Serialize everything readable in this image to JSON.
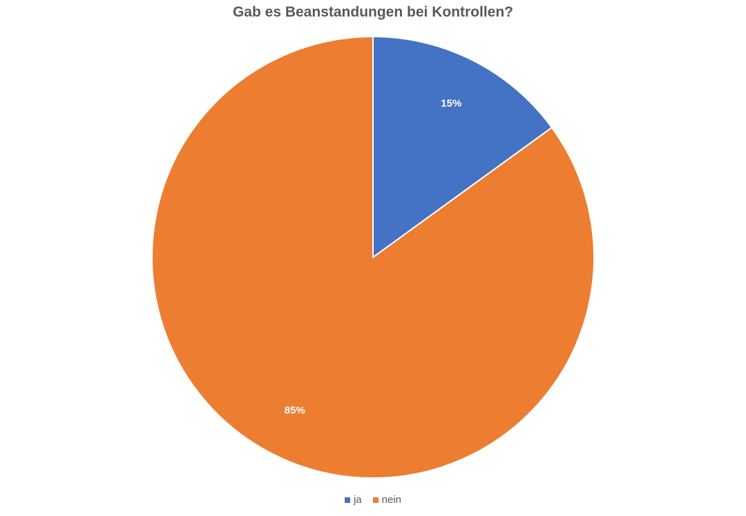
{
  "chart_data": {
    "type": "pie",
    "title": "Gab es Beanstandungen bei Kontrollen?",
    "categories": [
      "ja",
      "nein"
    ],
    "values": [
      15,
      85
    ],
    "data_labels": [
      "15%",
      "85%"
    ],
    "colors": [
      "#4472C4",
      "#ED7D31"
    ],
    "legend_position": "bottom"
  }
}
